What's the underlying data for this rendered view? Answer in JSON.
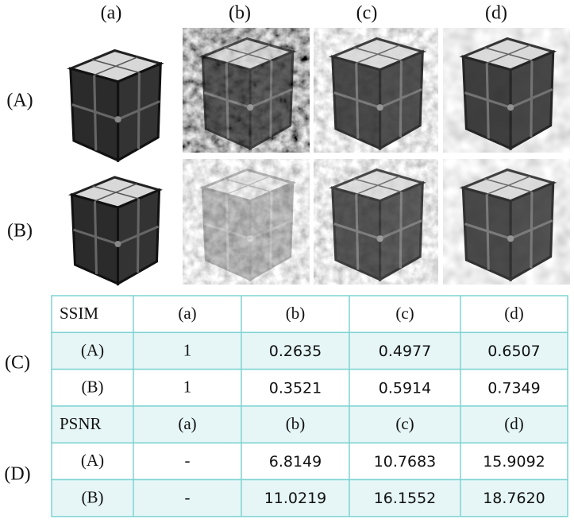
{
  "figure": {
    "columns": [
      "(a)",
      "(b)",
      "(c)",
      "(d)"
    ],
    "rows": [
      "(A)",
      "(B)"
    ],
    "table_groups": [
      {
        "label": "(C)",
        "header": [
          "SSIM",
          "(a)",
          "(b)",
          "(c)",
          "(d)"
        ],
        "rows": [
          [
            "(A)",
            "1",
            "0.2635",
            "0.4977",
            "0.6507"
          ],
          [
            "(B)",
            "1",
            "0.3521",
            "0.5914",
            "0.7349"
          ]
        ]
      },
      {
        "label": "(D)",
        "header": [
          "PSNR",
          "(a)",
          "(b)",
          "(c)",
          "(d)"
        ],
        "rows": [
          [
            "(A)",
            "-",
            "6.8149",
            "10.7683",
            "15.9092"
          ],
          [
            "(B)",
            "-",
            "11.0219",
            "16.1552",
            "18.7620"
          ]
        ]
      }
    ]
  }
}
